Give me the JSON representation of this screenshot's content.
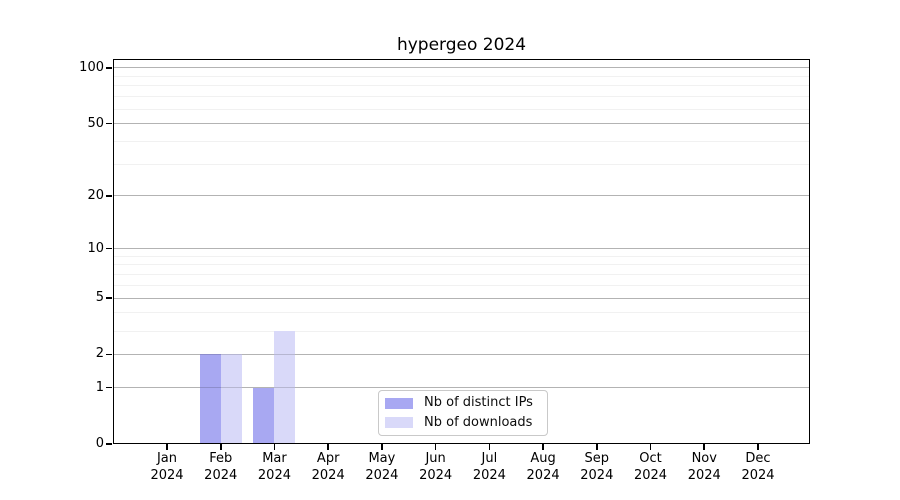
{
  "chart_data": {
    "type": "bar",
    "title": "hypergeo 2024",
    "categories": [
      "Jan",
      "Feb",
      "Mar",
      "Apr",
      "May",
      "Jun",
      "Jul",
      "Aug",
      "Sep",
      "Oct",
      "Nov",
      "Dec"
    ],
    "year_label": "2024",
    "series": [
      {
        "name": "Nb of distinct IPs",
        "color": "#a8a8f2",
        "values": [
          0,
          2,
          1,
          0,
          0,
          0,
          0,
          0,
          0,
          0,
          0,
          0
        ]
      },
      {
        "name": "Nb of downloads",
        "color": "#d9d9f9",
        "values": [
          0,
          2,
          3,
          0,
          0,
          0,
          0,
          0,
          0,
          0,
          0,
          0
        ]
      }
    ],
    "xlabel": "",
    "ylabel": "",
    "y_axis": {
      "scale": "log1p",
      "major_ticks": [
        0,
        1,
        2,
        5,
        10,
        20,
        50,
        100
      ],
      "minor_gridlines": [
        3,
        4,
        6,
        7,
        8,
        9,
        30,
        40,
        60,
        70,
        80,
        90
      ],
      "range_top": 110
    },
    "grid": "on",
    "legend_position": "inside-bottom-center"
  },
  "colors": {
    "background": "#ffffff",
    "axis": "#000000",
    "major_grid": "#d6d6d6",
    "minor_grid": "#f0f0f0",
    "legend_border": "#c9c9c9"
  }
}
